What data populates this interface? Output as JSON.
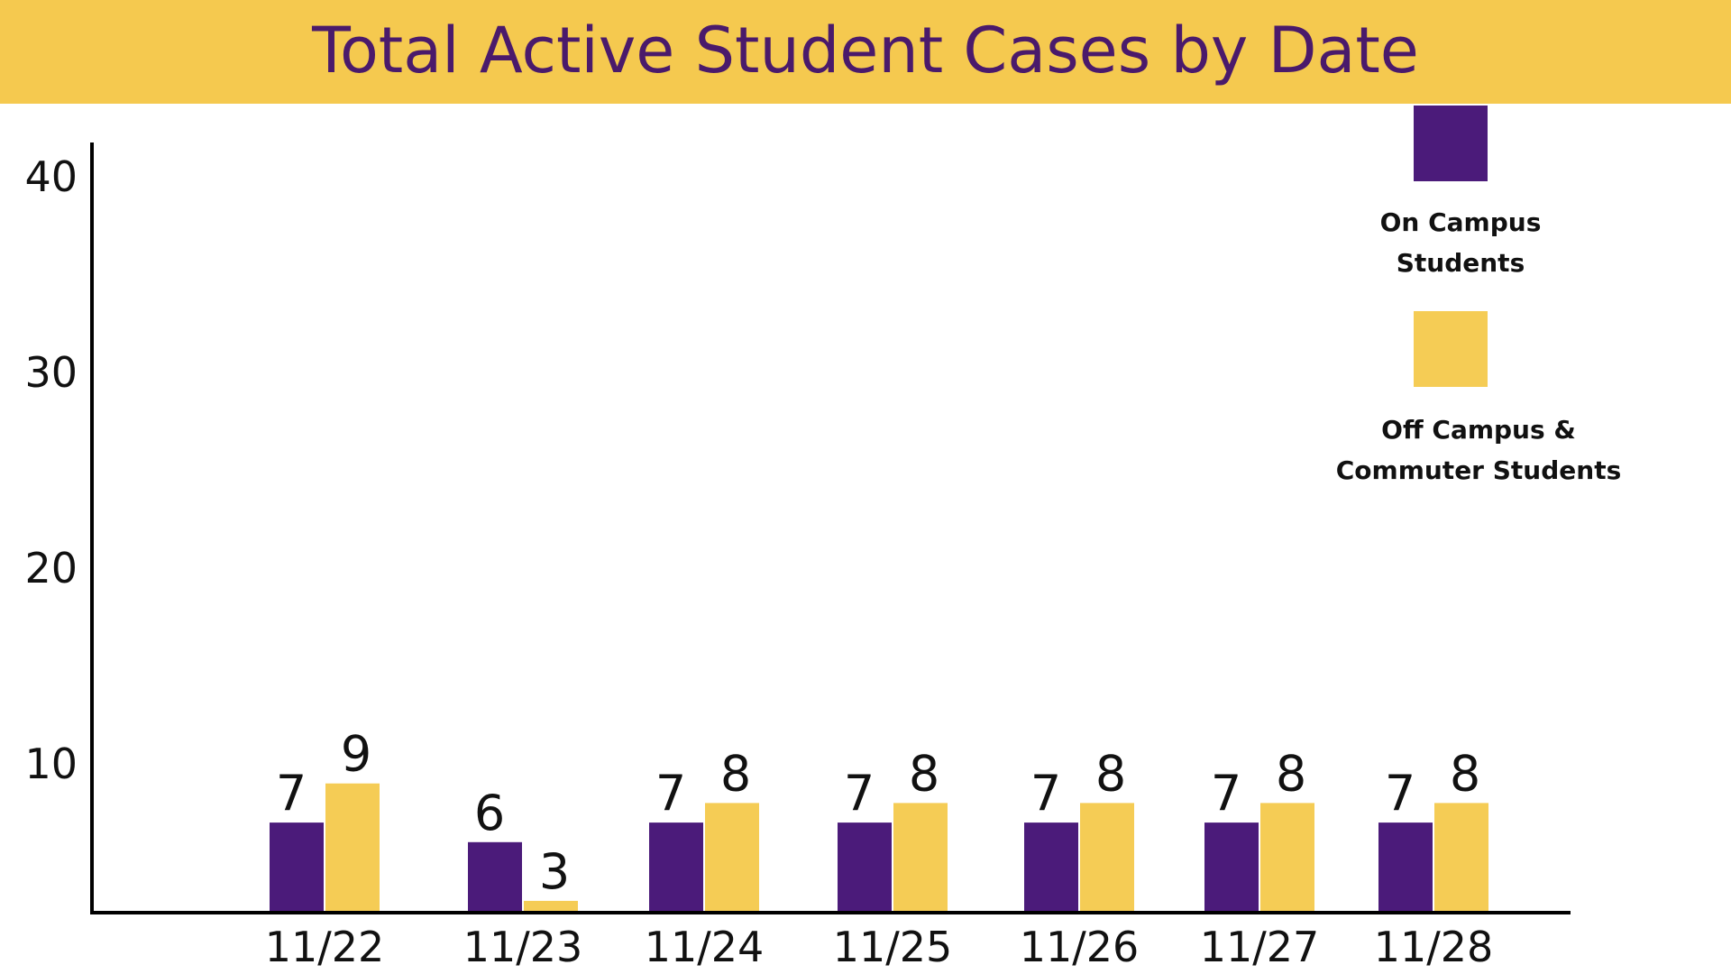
{
  "title": "Total Active Student Cases by Date",
  "colors": {
    "banner": "#F5C94F",
    "title_text": "#4A1A6B",
    "on_campus": "#4B1B7A",
    "off_campus": "#F5CC55",
    "axis": "#000000"
  },
  "chart_data": {
    "type": "bar",
    "title": "Total Active Student Cases by Date",
    "xlabel": "",
    "ylabel": "",
    "categories": [
      "11/22",
      "11/23",
      "11/24",
      "11/25",
      "11/26",
      "11/27",
      "11/28"
    ],
    "series": [
      {
        "name": "On Campus Students",
        "values": [
          7,
          6,
          7,
          7,
          7,
          7,
          7
        ]
      },
      {
        "name": "Off Campus & Commuter Students",
        "values": [
          9,
          3,
          8,
          8,
          8,
          8,
          8
        ]
      }
    ],
    "ylim": [
      0,
      40
    ],
    "yticks": [
      "10",
      "20",
      "30",
      "40"
    ],
    "grid": false,
    "legend_position": "top-right",
    "data_labels": true
  },
  "legend": {
    "items": [
      {
        "label": "On Campus\nStudents"
      },
      {
        "label": "Off Campus &\nCommuter Students"
      }
    ]
  }
}
